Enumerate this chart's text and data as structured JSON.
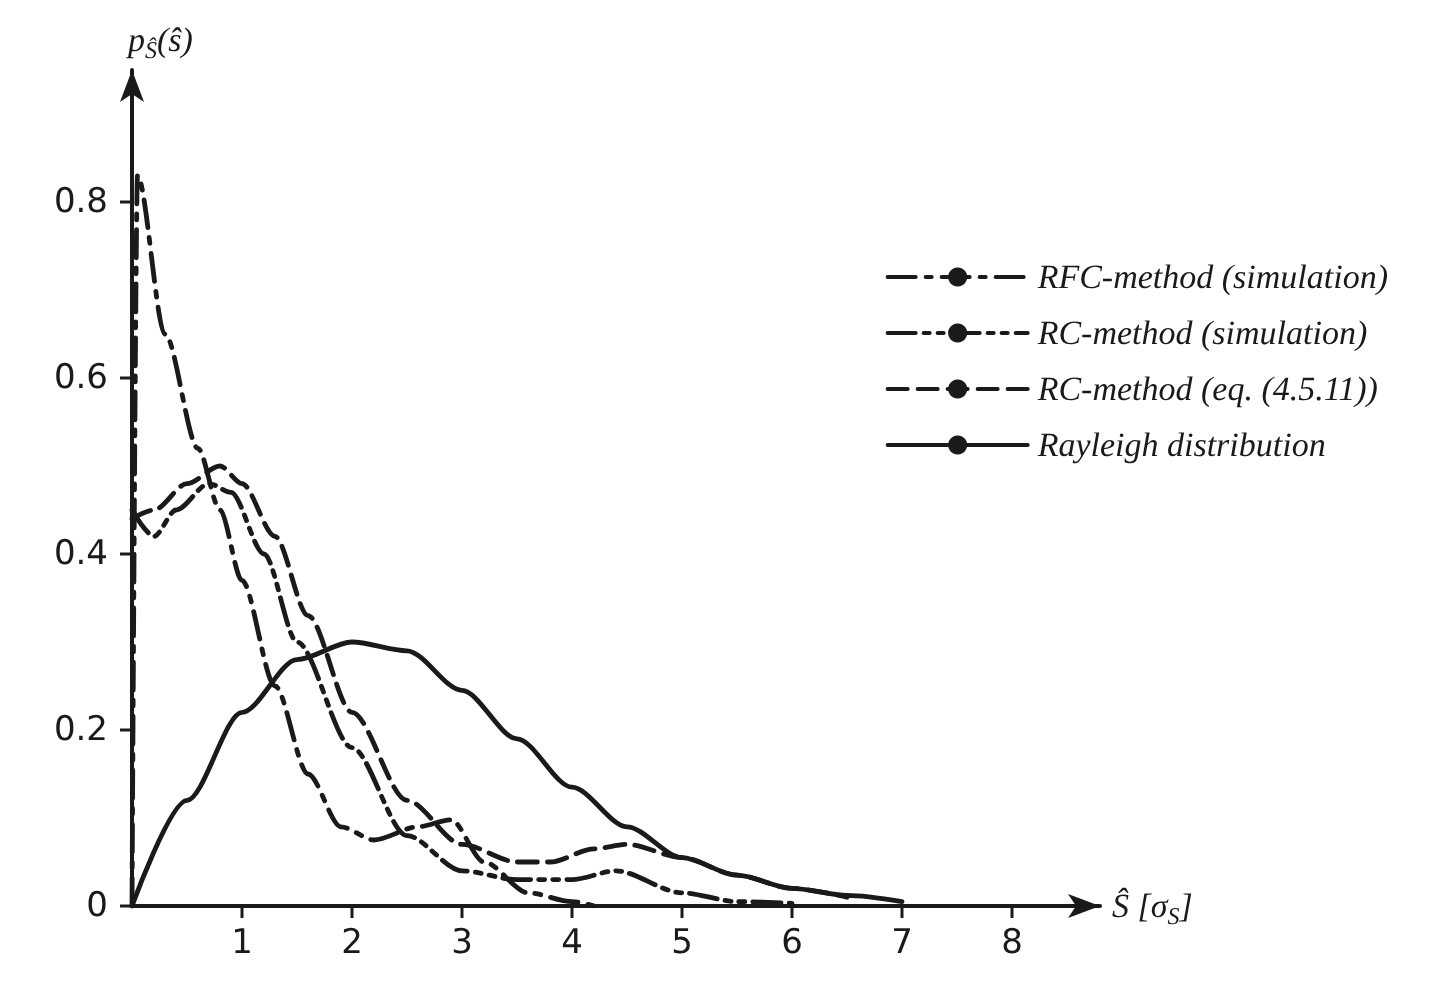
{
  "chart_data": {
    "type": "line",
    "xlabel": "Ŝ [σ$_{S}$]",
    "ylabel": "p$_{Ŝ}$(ŝ)",
    "xlim": [
      0,
      8.8
    ],
    "ylim": [
      0,
      0.95
    ],
    "xticks": [
      1,
      2,
      3,
      4,
      5,
      6,
      7,
      8
    ],
    "yticks": [
      0,
      0.2,
      0.4,
      0.6,
      0.8
    ],
    "grid": false,
    "legend": "top right",
    "marker": "none",
    "series": [
      {
        "name": "RFC-method (simulation)",
        "color": "#1a1a1a",
        "line_style": "dashdot",
        "x": [
          0,
          0.05,
          0.3,
          0.6,
          0.8,
          1,
          1.3,
          1.6,
          1.9,
          2.2,
          2.6,
          2.9,
          3.2,
          3.6,
          4,
          4.2
        ],
        "values": [
          0,
          0.83,
          0.65,
          0.52,
          0.45,
          0.37,
          0.25,
          0.15,
          0.09,
          0.075,
          0.09,
          0.098,
          0.05,
          0.015,
          0.005,
          0
        ]
      },
      {
        "name": "RC-method (simulation)",
        "color": "#1a1a1a",
        "line_style": "dashdotdot",
        "x": [
          0,
          0.2,
          0.4,
          0.7,
          0.9,
          1.2,
          1.5,
          2,
          2.5,
          3,
          3.5,
          4,
          4.4,
          5,
          5.5,
          6
        ],
        "values": [
          0.45,
          0.42,
          0.45,
          0.48,
          0.47,
          0.4,
          0.3,
          0.18,
          0.08,
          0.04,
          0.03,
          0.03,
          0.04,
          0.015,
          0.005,
          0.003
        ]
      },
      {
        "name": "RC-method (eq. (4.5.11))",
        "color": "#1a1a1a",
        "line_style": "dashed",
        "x": [
          0,
          0.2,
          0.5,
          0.8,
          1,
          1.3,
          1.6,
          2,
          2.5,
          3,
          3.5,
          3.8,
          4.2,
          4.5,
          5,
          5.5,
          6,
          6.5
        ],
        "values": [
          0.44,
          0.45,
          0.48,
          0.5,
          0.48,
          0.42,
          0.33,
          0.22,
          0.12,
          0.07,
          0.05,
          0.05,
          0.065,
          0.07,
          0.055,
          0.035,
          0.02,
          0.01
        ]
      },
      {
        "name": "Rayleigh distribution",
        "color": "#1a1a1a",
        "line_style": "solid",
        "x": [
          0,
          0.5,
          1,
          1.5,
          2,
          2.5,
          3,
          3.5,
          4,
          4.5,
          5,
          5.5,
          6,
          6.5,
          7
        ],
        "values": [
          0,
          0.12,
          0.22,
          0.28,
          0.3,
          0.29,
          0.245,
          0.19,
          0.135,
          0.09,
          0.055,
          0.035,
          0.02,
          0.012,
          0.005
        ]
      }
    ]
  }
}
